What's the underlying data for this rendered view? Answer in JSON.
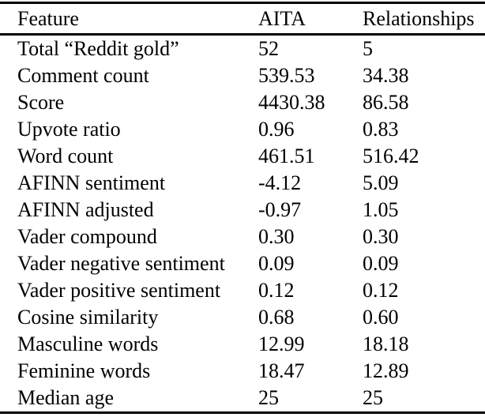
{
  "table": {
    "columns": [
      "Feature",
      "AITA",
      "Relationships"
    ],
    "rows": [
      [
        "Total “Reddit gold”",
        "52",
        "5"
      ],
      [
        "Comment count",
        "539.53",
        "34.38"
      ],
      [
        "Score",
        "4430.38",
        "86.58"
      ],
      [
        "Upvote ratio",
        "0.96",
        "0.83"
      ],
      [
        "Word count",
        "461.51",
        "516.42"
      ],
      [
        "AFINN sentiment",
        "-4.12",
        "5.09"
      ],
      [
        "AFINN adjusted",
        "-0.97",
        "1.05"
      ],
      [
        "Vader compound",
        "0.30",
        "0.30"
      ],
      [
        "Vader negative sentiment",
        "0.09",
        "0.09"
      ],
      [
        "Vader positive sentiment",
        "0.12",
        "0.12"
      ],
      [
        "Cosine similarity",
        "0.68",
        "0.60"
      ],
      [
        "Masculine words",
        "12.99",
        "18.18"
      ],
      [
        "Feminine words",
        "18.47",
        "12.89"
      ],
      [
        "Median age",
        "25",
        "25"
      ]
    ]
  },
  "colors": {
    "text": "#000000",
    "background": "#ffffff",
    "rule": "#000000"
  }
}
